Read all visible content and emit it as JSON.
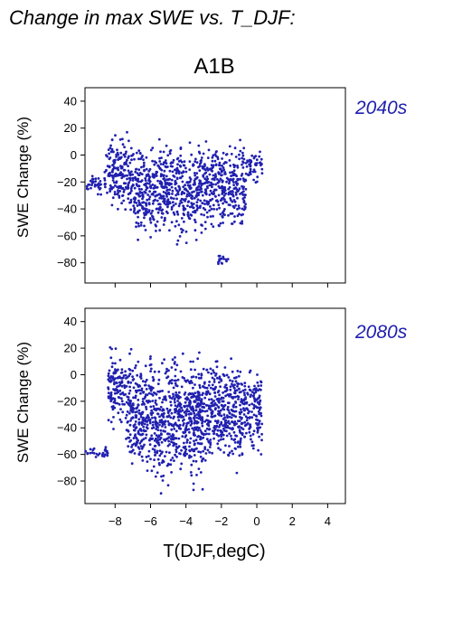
{
  "title": "Change in max SWE vs. T_DJF:",
  "scenario": "A1B",
  "xlabel": "T(DJF,degC)",
  "accent_color": "#2020b0",
  "chart_data": [
    {
      "type": "scatter",
      "period": "2040s",
      "ylabel": "SWE Change (%)",
      "xlabel": "",
      "xlim": [
        -9.7,
        5
      ],
      "ylim": [
        -95,
        50
      ],
      "xticks": [
        -8,
        -6,
        -4,
        -2,
        0,
        2,
        4
      ],
      "yticks": [
        40,
        20,
        0,
        -20,
        -40,
        -60,
        -80
      ],
      "x_tick_labels_shown": false,
      "grid": false,
      "color": "#2020b0",
      "clusters": [
        {
          "x_range": [
            -9.6,
            -8.8
          ],
          "y_range": [
            -35,
            -10
          ]
        },
        {
          "x_range": [
            -8.6,
            -7.0
          ],
          "y_range": [
            -50,
            22
          ]
        },
        {
          "x_range": [
            -7.0,
            -5.5
          ],
          "y_range": [
            -72,
            18
          ]
        },
        {
          "x_range": [
            -5.5,
            -2.6
          ],
          "y_range": [
            -70,
            20
          ]
        },
        {
          "x_range": [
            -2.6,
            -0.6
          ],
          "y_range": [
            -65,
            18
          ]
        },
        {
          "x_range": [
            -0.6,
            0.3
          ],
          "y_range": [
            -25,
            7
          ]
        },
        {
          "x_range": [
            -2.2,
            -1.5
          ],
          "y_range": [
            -85,
            -72
          ]
        }
      ]
    },
    {
      "type": "scatter",
      "period": "2080s",
      "ylabel": "SWE Change (%)",
      "xlabel": "T(DJF,degC)",
      "xlim": [
        -9.7,
        5
      ],
      "ylim": [
        -97,
        50
      ],
      "xticks": [
        -8,
        -6,
        -4,
        -2,
        0,
        2,
        4
      ],
      "xtick_labels": [
        "−8",
        "−6",
        "−4",
        "−2",
        "0",
        "2",
        "4"
      ],
      "yticks": [
        40,
        20,
        0,
        -20,
        -40,
        -60,
        -80
      ],
      "grid": false,
      "color": "#2020b0",
      "clusters": [
        {
          "x_range": [
            -9.7,
            -8.4
          ],
          "y_range": [
            -65,
            -52
          ]
        },
        {
          "x_range": [
            -8.4,
            -7.4
          ],
          "y_range": [
            -45,
            26
          ]
        },
        {
          "x_range": [
            -7.4,
            -5.8
          ],
          "y_range": [
            -85,
            24
          ]
        },
        {
          "x_range": [
            -5.8,
            -3.0
          ],
          "y_range": [
            -95,
            28
          ]
        },
        {
          "x_range": [
            -3.0,
            -0.8
          ],
          "y_range": [
            -80,
            24
          ]
        },
        {
          "x_range": [
            -0.8,
            0.3
          ],
          "y_range": [
            -65,
            12
          ]
        }
      ]
    }
  ]
}
